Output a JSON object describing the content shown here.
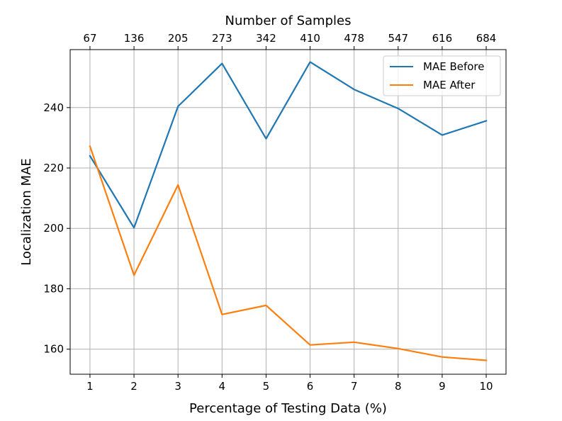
{
  "chart_data": {
    "type": "line",
    "xlabel": "Percentage of Testing Data (%)",
    "ylabel": "Localization MAE",
    "top_xlabel": "Number of Samples",
    "x": [
      1,
      2,
      3,
      4,
      5,
      6,
      7,
      8,
      9,
      10
    ],
    "x_tick_labels": [
      "1",
      "2",
      "3",
      "4",
      "5",
      "6",
      "7",
      "8",
      "9",
      "10"
    ],
    "top_tick_labels": [
      "67",
      "136",
      "205",
      "273",
      "342",
      "410",
      "478",
      "547",
      "616",
      "684"
    ],
    "y_ticks": [
      160,
      180,
      200,
      220,
      240
    ],
    "y_tick_labels": [
      "160",
      "180",
      "200",
      "220",
      "240"
    ],
    "xlim": [
      0.55,
      10.45
    ],
    "ylim": [
      151.7,
      259.2
    ],
    "grid": true,
    "legend_position": "top-right",
    "series": [
      {
        "name": "MAE Before",
        "color": "#1f77b4",
        "values": [
          224.0,
          200.2,
          240.4,
          254.6,
          229.7,
          255.1,
          246.0,
          239.7,
          230.9,
          235.6
        ]
      },
      {
        "name": "MAE After",
        "color": "#ff7f0e",
        "values": [
          227.2,
          184.5,
          214.4,
          171.5,
          174.5,
          161.4,
          162.3,
          160.2,
          157.4,
          156.3
        ]
      }
    ]
  }
}
